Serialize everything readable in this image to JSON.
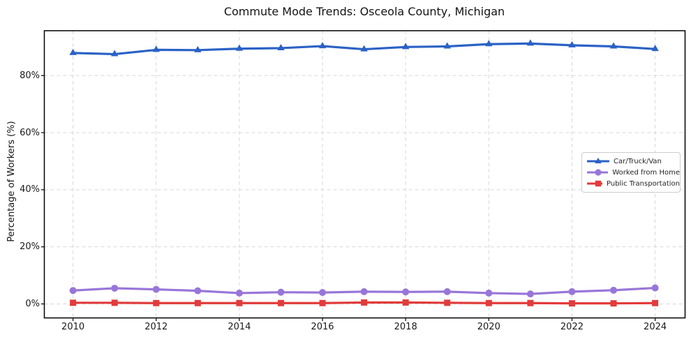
{
  "chart_data": {
    "type": "line",
    "title": "Commute Mode Trends: Osceola County, Michigan",
    "xlabel": "",
    "ylabel": "Percentage of Workers (%)",
    "x": [
      2010,
      2011,
      2012,
      2013,
      2014,
      2015,
      2016,
      2017,
      2018,
      2019,
      2020,
      2021,
      2022,
      2023,
      2024
    ],
    "series": [
      {
        "name": "Car/Truck/Van",
        "color": "#2b62c6",
        "marker": "triangle",
        "values": [
          87.9,
          87.5,
          89.0,
          88.9,
          89.4,
          89.6,
          90.3,
          89.2,
          90.0,
          90.2,
          91.0,
          91.2,
          90.6,
          90.2,
          89.3
        ]
      },
      {
        "name": "Worked from Home",
        "color": "#9876d9",
        "marker": "circle",
        "values": [
          4.7,
          5.5,
          5.1,
          4.6,
          3.8,
          4.1,
          4.0,
          4.3,
          4.2,
          4.3,
          3.8,
          3.5,
          4.3,
          4.8,
          5.6
        ]
      },
      {
        "name": "Public Transportation",
        "color": "#e23b3b",
        "marker": "square",
        "values": [
          0.4,
          0.4,
          0.3,
          0.3,
          0.3,
          0.3,
          0.3,
          0.5,
          0.5,
          0.4,
          0.3,
          0.3,
          0.2,
          0.2,
          0.3
        ]
      }
    ],
    "xticks": [
      2010,
      2012,
      2014,
      2016,
      2018,
      2020,
      2022,
      2024
    ],
    "xtick_labels": [
      "2010",
      "2012",
      "2014",
      "2016",
      "2018",
      "2020",
      "2022",
      "2024"
    ],
    "yticks": [
      0,
      20,
      40,
      60,
      80
    ],
    "ytick_labels": [
      "0%",
      "20%",
      "40%",
      "60%",
      "80%"
    ],
    "xlim": [
      2009.31,
      2024.72
    ],
    "ylim": [
      -4.9,
      95.7
    ],
    "grid": true,
    "grid_style": "dashed",
    "grid_color": "#d7d7d7",
    "spine_color": "#000000",
    "legend_position": "middle-right"
  }
}
